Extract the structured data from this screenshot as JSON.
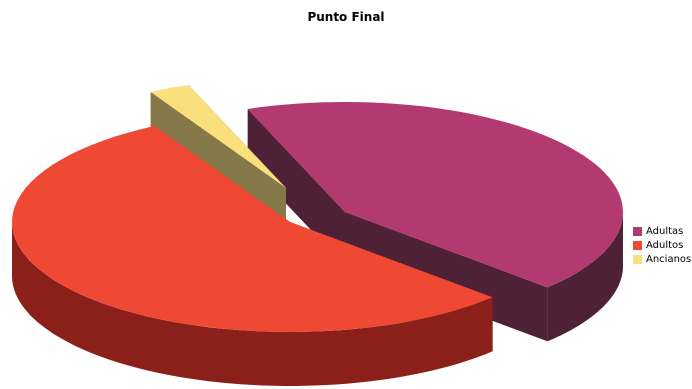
{
  "chart_data": {
    "type": "pie",
    "title": "Punto Final",
    "series": [
      {
        "name": "Adultas",
        "value": 42.7,
        "color": "#B23A70",
        "side_color": "#4F2137"
      },
      {
        "name": "Adultos",
        "value": 54.9,
        "color": "#EF4934",
        "side_color": "#8B1F1A"
      },
      {
        "name": "Ancianos",
        "value": 2.4,
        "color": "#F9E07C",
        "side_color": "#857849"
      }
    ],
    "legend_position": "right",
    "exploded": true,
    "three_d": true
  }
}
